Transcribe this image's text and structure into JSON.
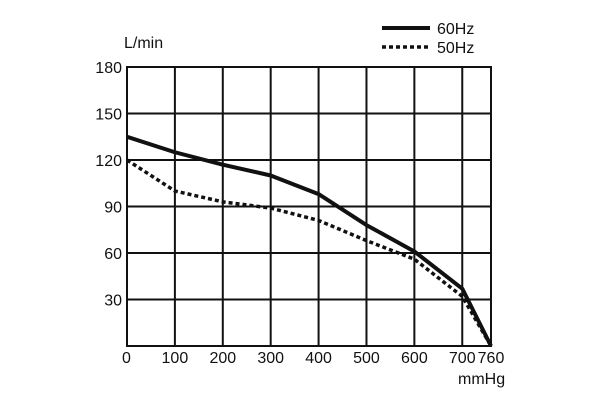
{
  "chart_data": {
    "type": "line",
    "title": "",
    "xlabel": "mmHg",
    "ylabel": "L/min",
    "xlim": [
      0,
      760
    ],
    "ylim": [
      0,
      180
    ],
    "xticks": [
      0,
      100,
      200,
      300,
      400,
      500,
      600,
      700,
      760
    ],
    "yticks": [
      30,
      60,
      90,
      120,
      150,
      180
    ],
    "y_zero_label": "0",
    "grid": true,
    "legend_position": "top-right",
    "series": [
      {
        "name": "60Hz",
        "style": "solid",
        "color": "#111111",
        "x": [
          0,
          100,
          200,
          300,
          400,
          500,
          600,
          700,
          760
        ],
        "y": [
          135,
          125,
          117,
          110,
          98,
          78,
          61,
          37,
          0
        ]
      },
      {
        "name": "50Hz",
        "style": "dotted",
        "color": "#111111",
        "x": [
          0,
          100,
          200,
          300,
          400,
          500,
          600,
          700,
          760
        ],
        "y": [
          120,
          100,
          93,
          89,
          81,
          68,
          56,
          32,
          0
        ]
      }
    ]
  }
}
